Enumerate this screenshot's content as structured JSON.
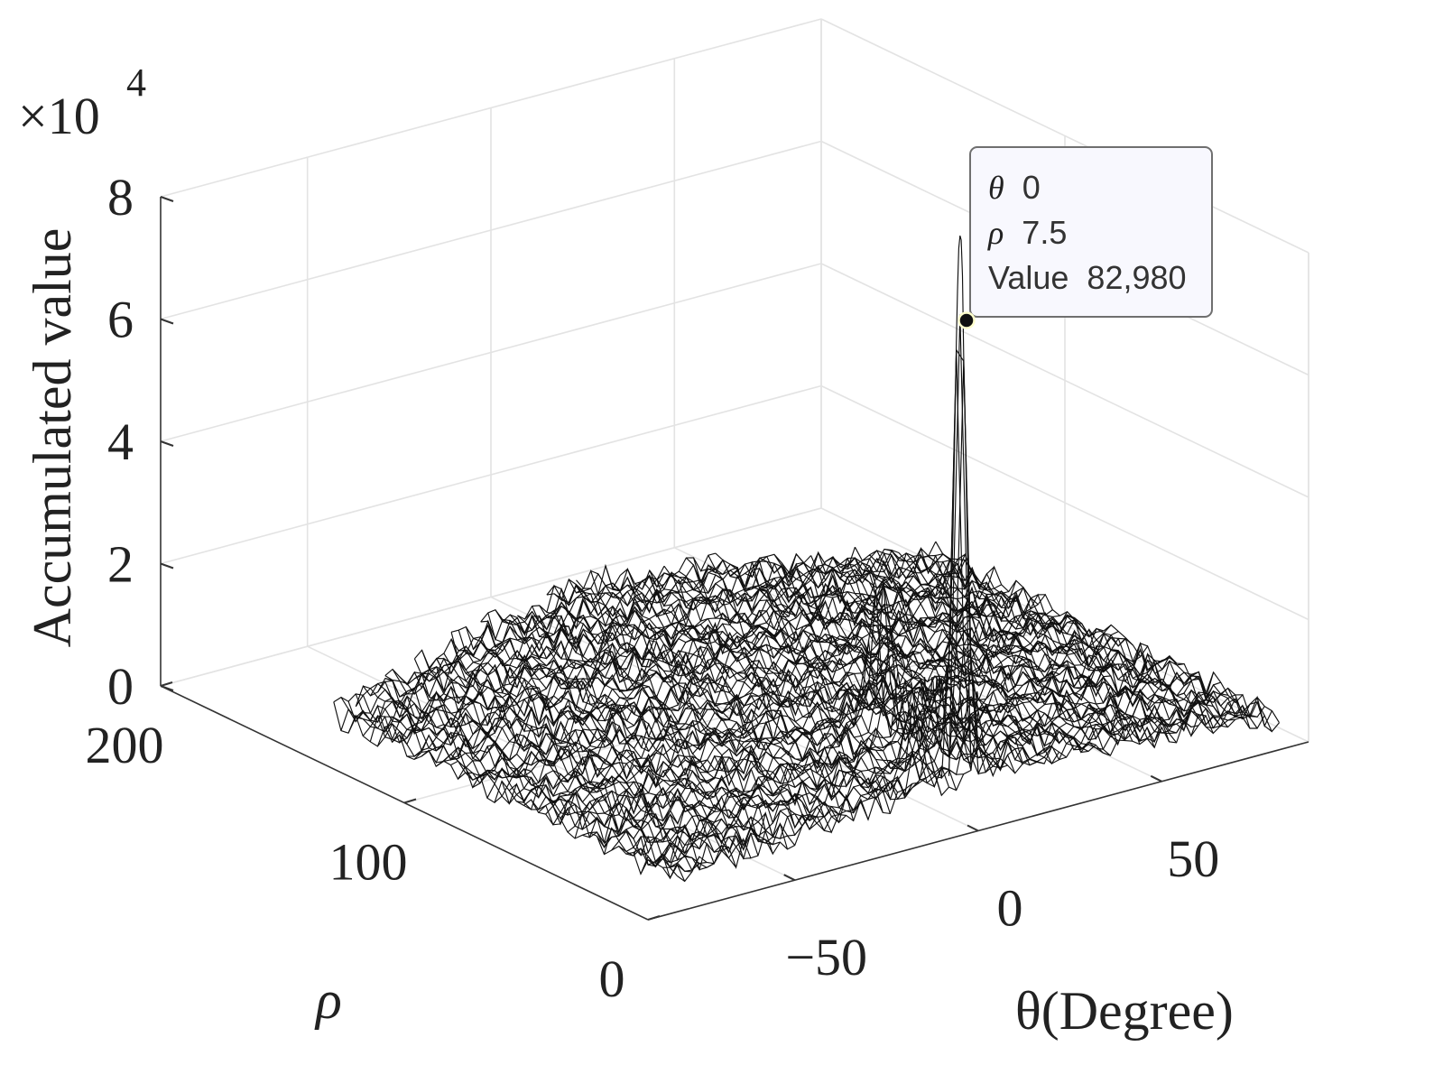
{
  "chart_data": {
    "type": "surface",
    "title": "",
    "xlabel": "θ(Degree)",
    "ylabel": "ρ",
    "zlabel": "Accumulated value",
    "z_exponent_label": "×10",
    "z_exponent_power": "4",
    "xlim": [
      -90,
      90
    ],
    "ylim": [
      0,
      200
    ],
    "zlim": [
      0,
      8
    ],
    "x_ticks": [
      {
        "value": -50,
        "label": "−50"
      },
      {
        "value": 0,
        "label": "0"
      },
      {
        "value": 50,
        "label": "50"
      }
    ],
    "y_ticks": [
      {
        "value": 0,
        "label": "0"
      },
      {
        "value": 100,
        "label": "100"
      },
      {
        "value": 200,
        "label": "200"
      }
    ],
    "z_ticks": [
      {
        "value": 0,
        "label": "0"
      },
      {
        "value": 2,
        "label": "2"
      },
      {
        "value": 4,
        "label": "4"
      },
      {
        "value": 6,
        "label": "6"
      },
      {
        "value": 8,
        "label": "8"
      }
    ],
    "grid": true,
    "surface_color": "#ffffff",
    "edge_color": "#111111",
    "background_level_approx": 0.8,
    "peak": {
      "theta": 0,
      "rho": 7.5,
      "value": 82980
    },
    "secondary_peaks": [
      {
        "theta": -12,
        "rho": 8,
        "value_approx": 12000
      },
      {
        "theta": 0,
        "rho": 40,
        "value_approx": 20000
      }
    ],
    "datatip": {
      "line1_symbol": "θ",
      "line1_value": "0",
      "line2_symbol": "ρ",
      "line2_value": "7.5",
      "line3_label": "Value",
      "line3_value": "82,980"
    }
  }
}
